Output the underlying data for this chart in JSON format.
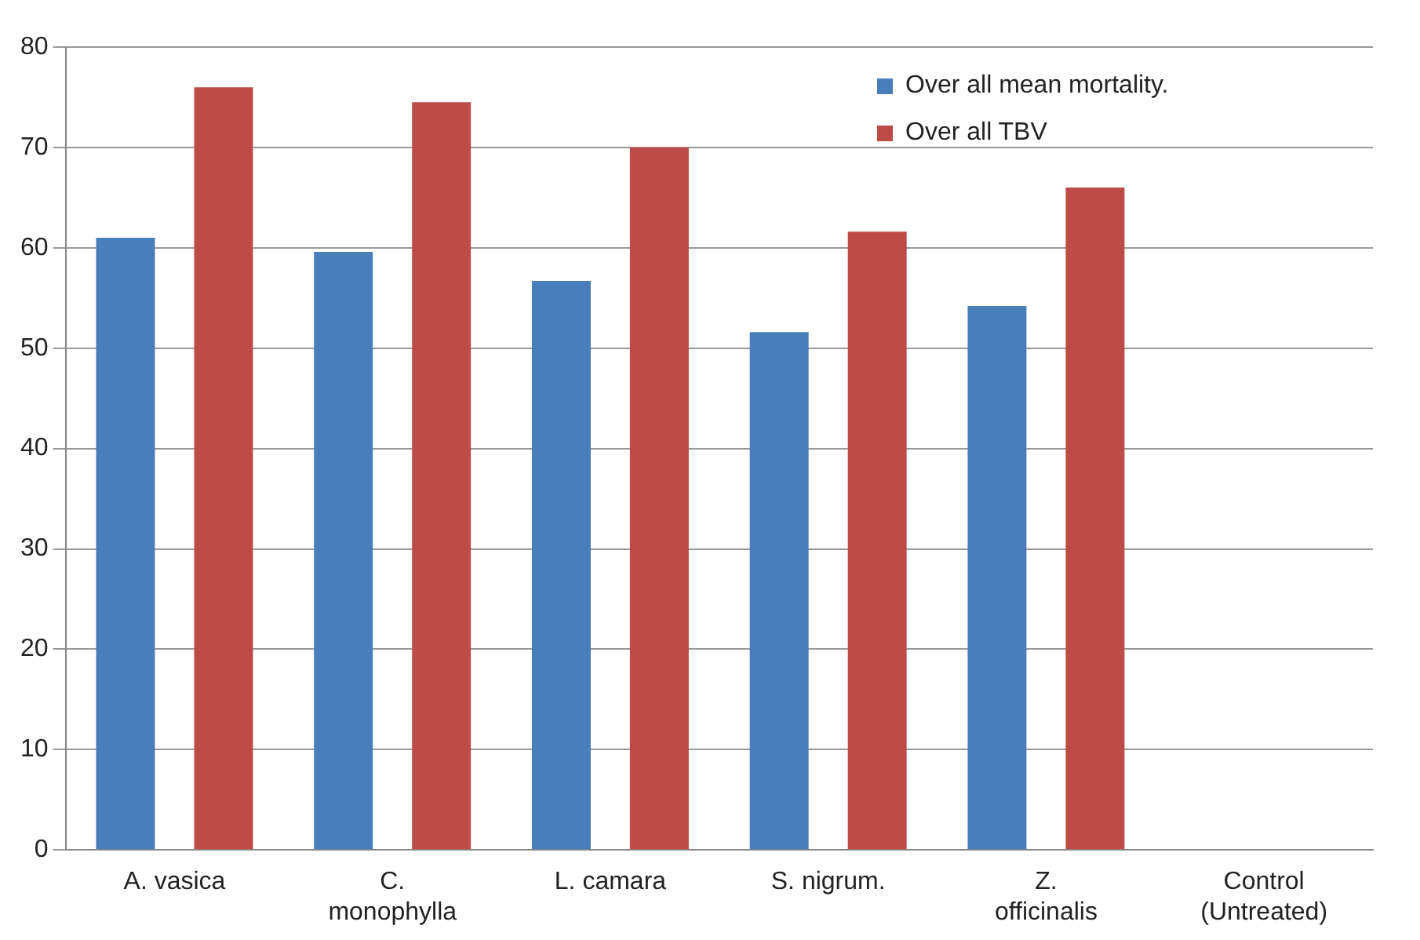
{
  "chart_data": {
    "type": "bar",
    "categories": [
      "A. vasica",
      "C. monophylla",
      "L. camara",
      "S. nigrum.",
      "Z. officinalis",
      "Control (Untreated)"
    ],
    "series": [
      {
        "name": "Over all mean mortality.",
        "color": "#4a7ebb",
        "values": [
          61,
          59.6,
          56.7,
          51.6,
          54.2,
          0
        ]
      },
      {
        "name": "Over all TBV",
        "color": "#be4b48",
        "values": [
          76,
          74.5,
          70,
          61.6,
          66,
          0
        ]
      }
    ],
    "ylim": [
      0,
      80
    ],
    "yticks": [
      0,
      10,
      20,
      30,
      40,
      50,
      60,
      70,
      80
    ],
    "grid": "y",
    "legend": "top right"
  }
}
